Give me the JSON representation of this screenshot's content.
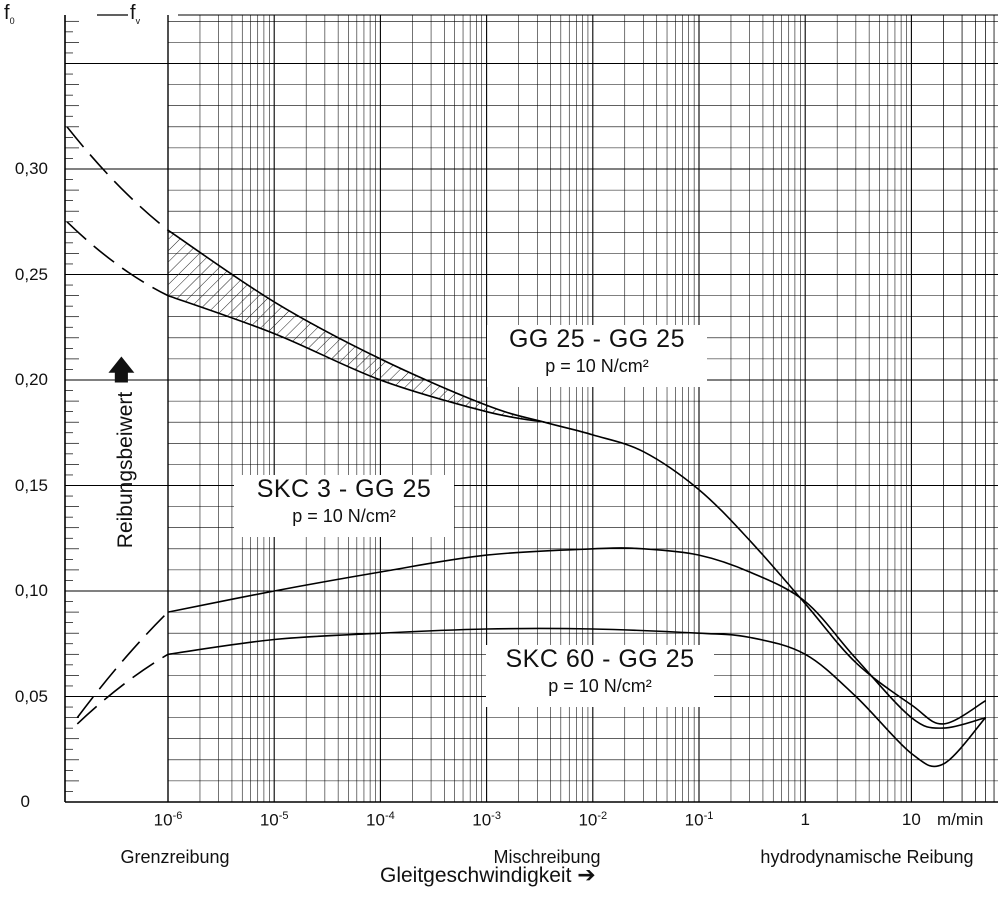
{
  "chart_data": {
    "type": "line",
    "x_scale": "log",
    "y_axis": {
      "tick_labels": [
        "0",
        "0,05",
        "0,10",
        "0,15",
        "0,20",
        "0,25",
        "0,30"
      ],
      "ticks": [
        0,
        0.05,
        0.1,
        0.15,
        0.2,
        0.25,
        0.3
      ],
      "ylim": [
        0,
        0.375
      ],
      "label": "Reibungsbeiwert",
      "symbol_left": "f",
      "symbol_left_sub": "0",
      "symbol_right": "f",
      "symbol_right_sub": "v"
    },
    "x_axis": {
      "tick_labels": [
        {
          "base": "10",
          "exp": "-6"
        },
        {
          "base": "10",
          "exp": "-5"
        },
        {
          "base": "10",
          "exp": "-4"
        },
        {
          "base": "10",
          "exp": "-3"
        },
        {
          "base": "10",
          "exp": "-2"
        },
        {
          "base": "10",
          "exp": "-1"
        },
        {
          "base": "1",
          "exp": ""
        },
        {
          "base": "10",
          "exp": ""
        }
      ],
      "ticks": [
        1e-06,
        1e-05,
        0.0001,
        0.001,
        0.01,
        0.1,
        1,
        10
      ],
      "unit": "m/min",
      "label": "Gleitgeschwindigkeit",
      "regions": [
        "Grenzreibung",
        "Mischreibung",
        "hydrodynamische Reibung"
      ]
    },
    "grid": true,
    "series": [
      {
        "name": "GG 25 - GG 25",
        "condition": "p = 10 N/cm²",
        "band_upper": {
          "x": [
            1e-06,
            1e-05,
            0.0001,
            0.001,
            0.0035,
            0.01,
            0.03,
            0.1,
            0.3,
            1,
            3,
            10,
            20,
            50
          ],
          "y": [
            0.271,
            0.237,
            0.21,
            0.188,
            0.18,
            0.174,
            0.166,
            0.148,
            0.124,
            0.094,
            0.066,
            0.046,
            0.037,
            0.048
          ]
        },
        "band_lower": {
          "x": [
            1e-06,
            1e-05,
            0.0001,
            0.001,
            0.0035
          ],
          "y": [
            0.24,
            0.222,
            0.2,
            0.185,
            0.18
          ]
        },
        "extrapolated_upper": {
          "x": [
            1e-07,
            1e-06
          ],
          "y": [
            0.32,
            0.271
          ]
        },
        "extrapolated_lower": {
          "x": [
            1e-07,
            1e-06
          ],
          "y": [
            0.275,
            0.24
          ]
        }
      },
      {
        "name": "SKC 3 - GG 25",
        "condition": "p = 10 N/cm²",
        "x": [
          1e-06,
          1e-05,
          0.0001,
          0.001,
          0.01,
          0.03,
          0.1,
          0.3,
          1,
          3,
          10,
          20,
          50
        ],
        "y": [
          0.09,
          0.1,
          0.109,
          0.117,
          0.12,
          0.12,
          0.117,
          0.109,
          0.095,
          0.068,
          0.04,
          0.035,
          0.04
        ],
        "extrapolated": {
          "x": [
            1.4e-07,
            1e-06
          ],
          "y": [
            0.04,
            0.09
          ]
        }
      },
      {
        "name": "SKC 60 - GG 25",
        "condition": "p = 10 N/cm²",
        "x": [
          1e-06,
          1e-05,
          0.0001,
          0.001,
          0.01,
          0.1,
          0.3,
          1,
          3,
          10,
          20,
          50
        ],
        "y": [
          0.07,
          0.077,
          0.08,
          0.082,
          0.082,
          0.08,
          0.078,
          0.07,
          0.05,
          0.023,
          0.018,
          0.04
        ],
        "extrapolated": {
          "x": [
            1.4e-07,
            1e-06
          ],
          "y": [
            0.037,
            0.07
          ]
        }
      }
    ]
  }
}
